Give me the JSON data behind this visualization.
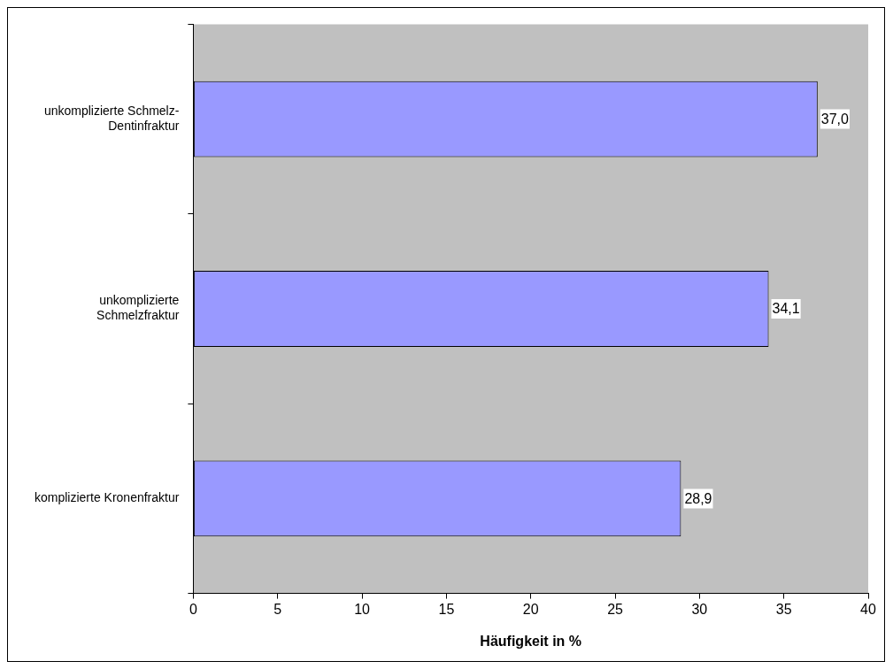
{
  "chart_data": {
    "type": "bar",
    "orientation": "horizontal",
    "categories": [
      "unkomplizierte Schmelz-\nDentinfraktur",
      "unkomplizierte\nSchmelzfraktur",
      "komplizierte Kronenfraktur"
    ],
    "values": [
      37.0,
      34.1,
      28.9
    ],
    "value_labels": [
      "37,0",
      "34,1",
      "28,9"
    ],
    "color": "#9999ff",
    "xlabel": "Häufigkeit in %",
    "xlim": [
      0,
      40
    ],
    "xticks": [
      0,
      5,
      10,
      15,
      20,
      25,
      30,
      35,
      40
    ],
    "grid": false,
    "legend": false
  }
}
